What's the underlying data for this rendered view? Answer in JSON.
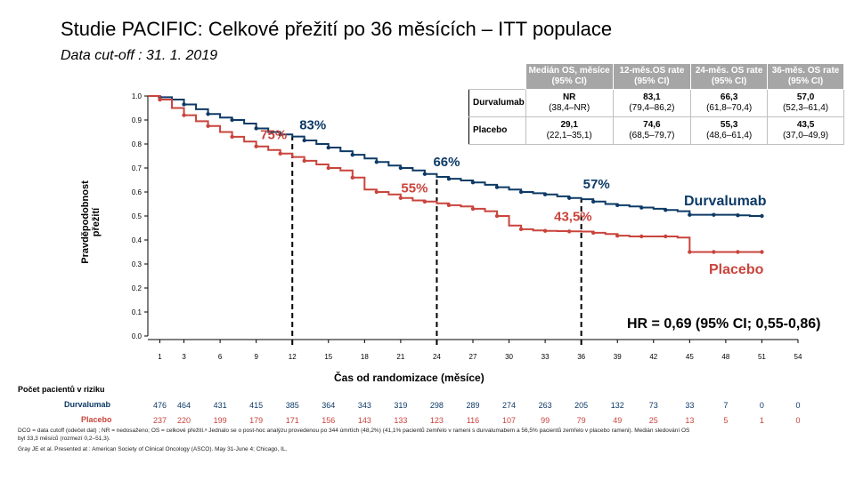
{
  "title": "Studie PACIFIC: Celkové přežití po 36 měsících – ITT populace",
  "subtitle": "Data cut-off : 31. 1. 2019",
  "colors": {
    "durvalumab": "#0d3a66",
    "placebo": "#c9443c"
  },
  "table": {
    "headers": [
      "Medián OS, měsíce (95% CI)",
      "12-měs.OS rate (95% CI)",
      "24-měs. OS rate (95% CI)",
      "36-měs. OS rate (95% CI)"
    ],
    "rows": [
      {
        "label": "Durvalumab",
        "cells": [
          [
            "NR",
            "(38,4–NR)"
          ],
          [
            "83,1",
            "(79,4–86,2)"
          ],
          [
            "66,3",
            "(61,8–70,4)"
          ],
          [
            "57,0",
            "(52,3–61,4)"
          ]
        ]
      },
      {
        "label": "Placebo",
        "cells": [
          [
            "29,1",
            "(22,1–35,1)"
          ],
          [
            "74,6",
            "(68,5–79,7)"
          ],
          [
            "55,3",
            "(48,6–61,4)"
          ],
          [
            "43,5",
            "(37,0–49,9)"
          ]
        ]
      }
    ]
  },
  "hr_text": "HR = 0,69 (95% CI; 0,55-0,86)",
  "risk": {
    "title": "Počet pacientů v riziku",
    "durvalumab_label": "Durvalumab",
    "placebo_label": "Placebo",
    "durvalumab": [
      "476",
      "464",
      "431",
      "415",
      "385",
      "364",
      "343",
      "319",
      "298",
      "289",
      "274",
      "263",
      "205",
      "132",
      "73",
      "33",
      "7",
      "0",
      "0"
    ],
    "placebo": [
      "237",
      "220",
      "199",
      "179",
      "171",
      "156",
      "143",
      "133",
      "123",
      "116",
      "107",
      "99",
      "79",
      "49",
      "25",
      "13",
      "5",
      "1",
      "0"
    ]
  },
  "footnote": "DCO = data cutoff (odečet dat) ; NR = nedosaženo; OS = celkové přežití.ᵃ Jednalo se o post-hoc analýzu provedenou po 344 úmrtích (48,2%) (41,1% pacientů zemřelo v rameni s durvalumabem a 56,5% pacientů zemřelo v placebo rameni). Medián sledování OS byl 33,3 měsíců (rozmezí 0,2–51,3).",
  "reference": "Gray JE et al. Presented at : American Society of Clinical Oncology (ASCO). May 31-June 4; Chicago, IL.",
  "chart_data": {
    "type": "line",
    "title": "Studie PACIFIC: Celkové přežití po 36 měsících – ITT populace",
    "xlabel": "Čas od randomizace (měsíce)",
    "ylabel": "Pravděpodobnost přežití",
    "xlim": [
      0,
      54
    ],
    "ylim": [
      0.0,
      1.0
    ],
    "xticks": [
      "1",
      "3",
      "6",
      "9",
      "12",
      "15",
      "18",
      "21",
      "24",
      "27",
      "30",
      "33",
      "36",
      "39",
      "42",
      "45",
      "48",
      "51",
      "54"
    ],
    "xtick_values": [
      1,
      3,
      6,
      9,
      12,
      15,
      18,
      21,
      24,
      27,
      30,
      33,
      36,
      39,
      42,
      45,
      48,
      51,
      54
    ],
    "yticks": [
      "0.0",
      "0.1",
      "0.2",
      "0.3",
      "0.4",
      "0.5",
      "0.6",
      "0.7",
      "0.8",
      "0.9",
      "1.0"
    ],
    "series": [
      {
        "name": "Durvalumab",
        "x": [
          0,
          1,
          2,
          3,
          4,
          5,
          6,
          7,
          8,
          9,
          10,
          11,
          12,
          13,
          14,
          15,
          16,
          17,
          18,
          19,
          20,
          21,
          22,
          23,
          24,
          25,
          26,
          27,
          28,
          29,
          30,
          31,
          32,
          33,
          34,
          35,
          36,
          37,
          38,
          39,
          40,
          41,
          42,
          43,
          44,
          45,
          46,
          47,
          48,
          49,
          50,
          51
        ],
        "y": [
          1.0,
          0.995,
          0.985,
          0.965,
          0.945,
          0.925,
          0.91,
          0.9,
          0.885,
          0.865,
          0.85,
          0.84,
          0.831,
          0.815,
          0.8,
          0.785,
          0.77,
          0.755,
          0.74,
          0.725,
          0.71,
          0.7,
          0.69,
          0.675,
          0.663,
          0.655,
          0.648,
          0.64,
          0.63,
          0.62,
          0.61,
          0.6,
          0.595,
          0.59,
          0.582,
          0.575,
          0.57,
          0.56,
          0.55,
          0.545,
          0.54,
          0.535,
          0.53,
          0.525,
          0.52,
          0.505,
          0.505,
          0.505,
          0.505,
          0.503,
          0.5,
          0.5
        ]
      },
      {
        "name": "Placebo",
        "x": [
          0,
          1,
          2,
          3,
          4,
          5,
          6,
          7,
          8,
          9,
          10,
          11,
          12,
          13,
          14,
          15,
          16,
          17,
          18,
          19,
          20,
          21,
          22,
          23,
          24,
          25,
          26,
          27,
          28,
          29,
          30,
          31,
          32,
          33,
          34,
          35,
          36,
          37,
          38,
          39,
          40,
          41,
          42,
          43,
          44,
          45,
          46,
          47,
          48,
          49,
          50,
          51
        ],
        "y": [
          1.0,
          0.985,
          0.95,
          0.92,
          0.895,
          0.875,
          0.85,
          0.83,
          0.81,
          0.79,
          0.775,
          0.76,
          0.746,
          0.73,
          0.715,
          0.7,
          0.69,
          0.66,
          0.61,
          0.6,
          0.59,
          0.575,
          0.565,
          0.56,
          0.553,
          0.545,
          0.54,
          0.53,
          0.52,
          0.5,
          0.46,
          0.445,
          0.44,
          0.438,
          0.437,
          0.436,
          0.435,
          0.43,
          0.425,
          0.418,
          0.415,
          0.415,
          0.415,
          0.415,
          0.41,
          0.35,
          0.35,
          0.35,
          0.35,
          0.35,
          0.35,
          0.35
        ]
      }
    ],
    "annotations": [
      {
        "series": "Durvalumab",
        "x": 12,
        "text": "83%"
      },
      {
        "series": "Durvalumab",
        "x": 24,
        "text": "66%"
      },
      {
        "series": "Durvalumab",
        "x": 36,
        "text": "57%"
      },
      {
        "series": "Placebo",
        "x": 12,
        "text": "75%"
      },
      {
        "series": "Placebo",
        "x": 24,
        "text": "55%"
      },
      {
        "series": "Placebo",
        "x": 36,
        "text": "43,5%"
      }
    ],
    "legend_labels": [
      "Durvalumab",
      "Placebo"
    ],
    "grid": false
  }
}
